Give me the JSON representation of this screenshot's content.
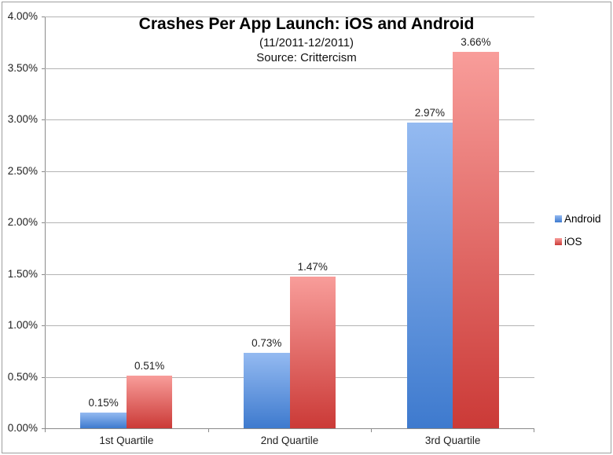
{
  "frame": {
    "background": "#ffffff",
    "border_color": "#9d9d9d"
  },
  "chart_data": {
    "type": "bar",
    "title": "Crashes Per App Launch: iOS and Android",
    "subtitle": "(11/2011-12/2011)",
    "source": "Source: Crittercism",
    "categories": [
      "1st Quartile",
      "2nd Quartile",
      "3rd Quartile"
    ],
    "series": [
      {
        "name": "Android",
        "values": [
          0.15,
          0.73,
          2.97
        ],
        "data_labels": [
          "0.15%",
          "0.73%",
          "2.97%"
        ],
        "color_top": "#94baf1",
        "color_bottom": "#3e7ace"
      },
      {
        "name": "iOS",
        "values": [
          0.51,
          1.47,
          3.66
        ],
        "data_labels": [
          "0.51%",
          "1.47%",
          "3.66%"
        ],
        "color_top": "#f89d9a",
        "color_bottom": "#cb3a37"
      }
    ],
    "y_axis": {
      "min": 0,
      "max": 4,
      "step": 0.5,
      "tick_labels": [
        "0.00%",
        "0.50%",
        "1.00%",
        "1.50%",
        "2.00%",
        "2.50%",
        "3.00%",
        "3.50%",
        "4.00%"
      ]
    },
    "grid": true,
    "legend_position": "right",
    "colors": {
      "gridline": "#b3b3b3",
      "axis": "#8a8a8a",
      "label_text": "#1f1f1f"
    }
  }
}
